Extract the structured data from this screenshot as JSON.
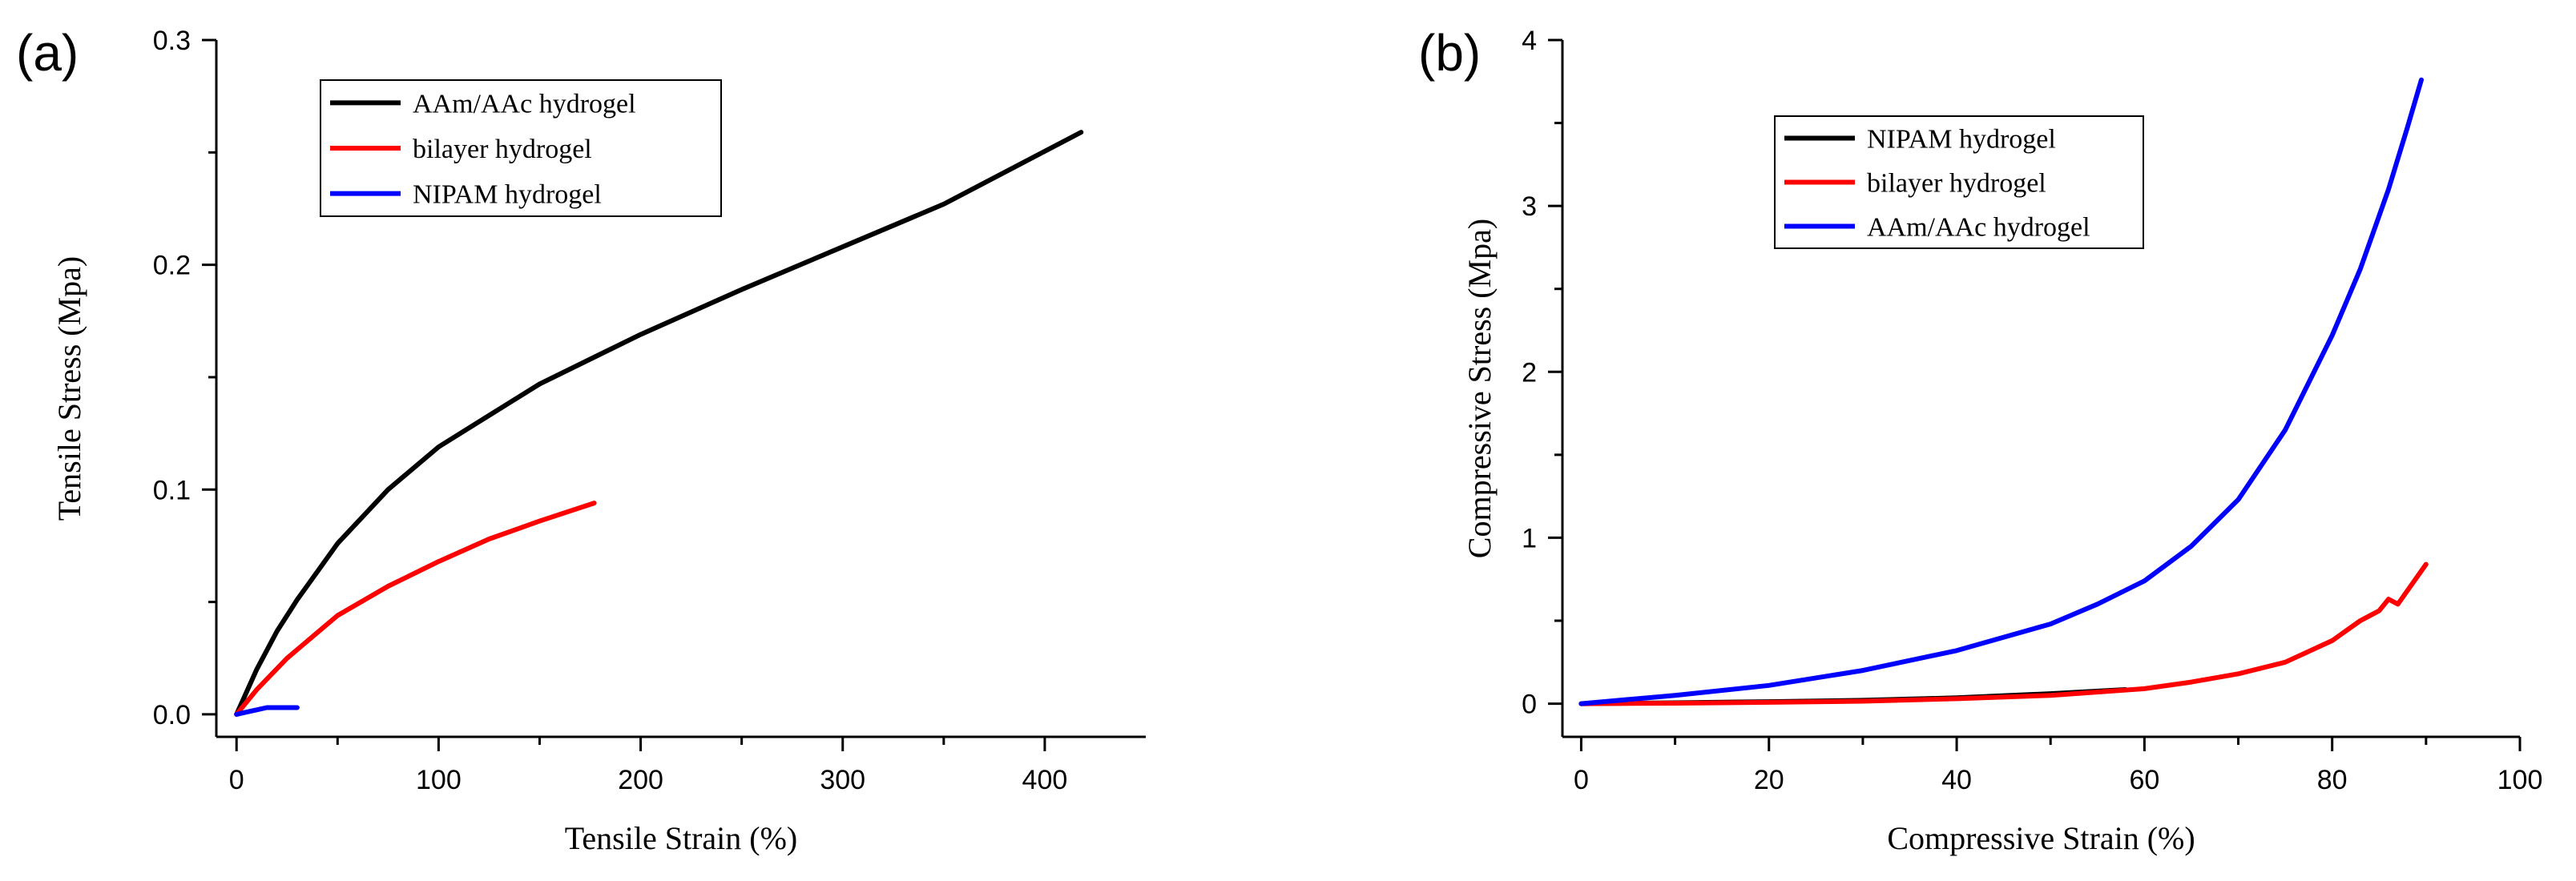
{
  "chart_data": [
    {
      "panel_label": "(a)",
      "type": "line",
      "xlabel": "Tensile Strain (%)",
      "ylabel": "Tensile Stress (Mpa)",
      "xlim": [
        -10,
        450
      ],
      "ylim": [
        -0.01,
        0.3
      ],
      "xticks": [
        "0",
        "100",
        "200",
        "300",
        "400"
      ],
      "xtick_values": [
        0,
        100,
        200,
        300,
        400
      ],
      "yticks": [
        "0.0",
        "0.1",
        "0.2",
        "0.3"
      ],
      "ytick_values": [
        0.0,
        0.1,
        0.2,
        0.3
      ],
      "legend_position": "top-left",
      "series": [
        {
          "name": "AAm/AAc hydrogel",
          "color": "#000000",
          "x": [
            0,
            10,
            20,
            30,
            50,
            75,
            100,
            125,
            150,
            175,
            200,
            250,
            300,
            350,
            418
          ],
          "y": [
            0,
            0.02,
            0.037,
            0.051,
            0.076,
            0.1,
            0.119,
            0.133,
            0.147,
            0.158,
            0.169,
            0.189,
            0.208,
            0.227,
            0.259
          ]
        },
        {
          "name": "bilayer hydrogel",
          "color": "#ff0000",
          "x": [
            0,
            10,
            25,
            50,
            75,
            100,
            125,
            150,
            177
          ],
          "y": [
            0,
            0.011,
            0.025,
            0.044,
            0.057,
            0.068,
            0.078,
            0.086,
            0.094
          ]
        },
        {
          "name": "NIPAM hydrogel",
          "color": "#0000ff",
          "x": [
            0,
            5,
            10,
            15,
            20,
            30
          ],
          "y": [
            0,
            0.001,
            0.002,
            0.003,
            0.003,
            0.003
          ]
        }
      ]
    },
    {
      "panel_label": "(b)",
      "type": "line",
      "xlabel": "Compressive Strain (%)",
      "ylabel": "Compressive Stress (Mpa)",
      "xlim": [
        -2,
        100
      ],
      "ylim": [
        -0.2,
        4
      ],
      "xticks": [
        "0",
        "20",
        "40",
        "60",
        "80",
        "100"
      ],
      "xtick_values": [
        0,
        20,
        40,
        60,
        80,
        100
      ],
      "yticks": [
        "0",
        "1",
        "2",
        "3",
        "4"
      ],
      "ytick_values": [
        0,
        1,
        2,
        3,
        4
      ],
      "legend_position": "top-center",
      "series": [
        {
          "name": "NIPAM hydrogel",
          "color": "#000000",
          "x": [
            0,
            10,
            20,
            30,
            40,
            50,
            58
          ],
          "y": [
            0,
            0.005,
            0.012,
            0.02,
            0.035,
            0.06,
            0.085
          ]
        },
        {
          "name": "bilayer hydrogel",
          "color": "#ff0000",
          "x": [
            0,
            10,
            20,
            30,
            40,
            50,
            60,
            65,
            70,
            75,
            80,
            83,
            84,
            85,
            86,
            87,
            88,
            90
          ],
          "y": [
            0,
            0.003,
            0.008,
            0.015,
            0.03,
            0.05,
            0.09,
            0.13,
            0.18,
            0.25,
            0.38,
            0.5,
            0.53,
            0.56,
            0.63,
            0.6,
            0.68,
            0.84
          ]
        },
        {
          "name": "AAm/AAc hydrogel",
          "color": "#0000ff",
          "x": [
            0,
            10,
            20,
            30,
            40,
            50,
            55,
            60,
            65,
            70,
            75,
            80,
            83,
            86,
            88,
            89.5
          ],
          "y": [
            0,
            0.05,
            0.11,
            0.2,
            0.32,
            0.48,
            0.6,
            0.74,
            0.95,
            1.23,
            1.65,
            2.22,
            2.62,
            3.1,
            3.47,
            3.76
          ]
        }
      ]
    }
  ]
}
